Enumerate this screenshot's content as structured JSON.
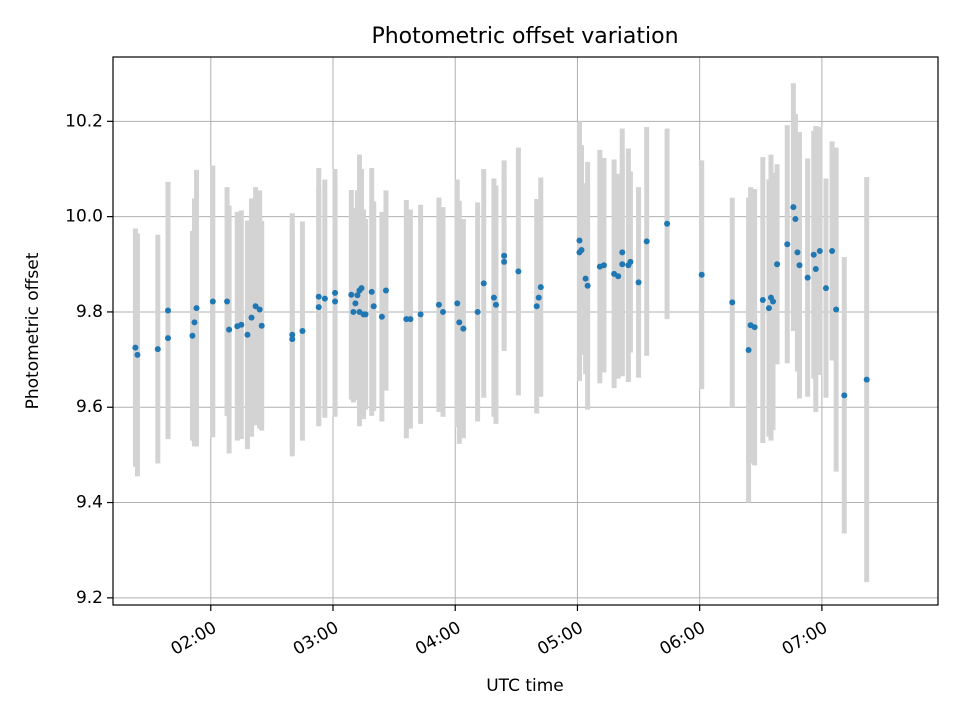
{
  "chart_data": {
    "type": "scatter",
    "title": "Photometric offset variation",
    "xlabel": "UTC time",
    "ylabel": "Photometric offset",
    "x_unit": "UTC time of day (HH:MM)",
    "xlim": [
      "01:12",
      "07:57"
    ],
    "ylim": [
      9.185,
      10.335
    ],
    "x_ticks": [
      "02:00",
      "03:00",
      "04:00",
      "05:00",
      "06:00",
      "07:00"
    ],
    "y_ticks": [
      "9.2",
      "9.4",
      "9.6",
      "9.8",
      "10.0",
      "10.2"
    ],
    "grid": true,
    "legend": "none",
    "point_color": "#1f77b4",
    "errorbar_color": "#d3d3d3",
    "series": [
      {
        "points": [
          {
            "x": "01:23",
            "y": 9.725,
            "yerr": 0.25
          },
          {
            "x": "01:24",
            "y": 9.71,
            "yerr": 0.255
          },
          {
            "x": "01:34",
            "y": 9.722,
            "yerr": 0.24
          },
          {
            "x": "01:39",
            "y": 9.745,
            "yerr": 0.2
          },
          {
            "x": "01:39",
            "y": 9.803,
            "yerr": 0.27
          },
          {
            "x": "01:51",
            "y": 9.75,
            "yerr": 0.22
          },
          {
            "x": "01:52",
            "y": 9.778,
            "yerr": 0.26
          },
          {
            "x": "01:53",
            "y": 9.808,
            "yerr": 0.29
          },
          {
            "x": "02:01",
            "y": 9.822,
            "yerr": 0.285
          },
          {
            "x": "02:08",
            "y": 9.822,
            "yerr": 0.24
          },
          {
            "x": "02:09",
            "y": 9.763,
            "yerr": 0.26
          },
          {
            "x": "02:13",
            "y": 9.77,
            "yerr": 0.24
          },
          {
            "x": "02:15",
            "y": 9.773,
            "yerr": 0.24
          },
          {
            "x": "02:18",
            "y": 9.752,
            "yerr": 0.24
          },
          {
            "x": "02:20",
            "y": 9.788,
            "yerr": 0.25
          },
          {
            "x": "02:22",
            "y": 9.812,
            "yerr": 0.25
          },
          {
            "x": "02:24",
            "y": 9.805,
            "yerr": 0.25
          },
          {
            "x": "02:25",
            "y": 9.771,
            "yerr": 0.22
          },
          {
            "x": "02:40",
            "y": 9.752,
            "yerr": 0.255
          },
          {
            "x": "02:40",
            "y": 9.743,
            "yerr": 0.24
          },
          {
            "x": "02:45",
            "y": 9.76,
            "yerr": 0.23
          },
          {
            "x": "02:53",
            "y": 9.81,
            "yerr": 0.25
          },
          {
            "x": "02:53",
            "y": 9.832,
            "yerr": 0.27
          },
          {
            "x": "02:56",
            "y": 9.828,
            "yerr": 0.25
          },
          {
            "x": "03:01",
            "y": 9.822,
            "yerr": 0.24
          },
          {
            "x": "03:01",
            "y": 9.84,
            "yerr": 0.26
          },
          {
            "x": "03:09",
            "y": 9.836,
            "yerr": 0.22
          },
          {
            "x": "03:10",
            "y": 9.8,
            "yerr": 0.19
          },
          {
            "x": "03:11",
            "y": 9.818,
            "yerr": 0.2
          },
          {
            "x": "03:12",
            "y": 9.835,
            "yerr": 0.22
          },
          {
            "x": "03:13",
            "y": 9.845,
            "yerr": 0.285
          },
          {
            "x": "03:13",
            "y": 9.8,
            "yerr": 0.22
          },
          {
            "x": "03:14",
            "y": 9.85,
            "yerr": 0.25
          },
          {
            "x": "03:15",
            "y": 9.795,
            "yerr": 0.22
          },
          {
            "x": "03:16",
            "y": 9.795,
            "yerr": 0.2
          },
          {
            "x": "03:19",
            "y": 9.842,
            "yerr": 0.26
          },
          {
            "x": "03:20",
            "y": 9.812,
            "yerr": 0.22
          },
          {
            "x": "03:24",
            "y": 9.79,
            "yerr": 0.22
          },
          {
            "x": "03:26",
            "y": 9.845,
            "yerr": 0.21
          },
          {
            "x": "03:36",
            "y": 9.785,
            "yerr": 0.25
          },
          {
            "x": "03:38",
            "y": 9.785,
            "yerr": 0.23
          },
          {
            "x": "03:43",
            "y": 9.795,
            "yerr": 0.23
          },
          {
            "x": "03:52",
            "y": 9.815,
            "yerr": 0.225
          },
          {
            "x": "03:54",
            "y": 9.8,
            "yerr": 0.22
          },
          {
            "x": "04:01",
            "y": 9.818,
            "yerr": 0.26
          },
          {
            "x": "04:02",
            "y": 9.778,
            "yerr": 0.255
          },
          {
            "x": "04:04",
            "y": 9.765,
            "yerr": 0.23
          },
          {
            "x": "04:11",
            "y": 9.8,
            "yerr": 0.23
          },
          {
            "x": "04:14",
            "y": 9.86,
            "yerr": 0.24
          },
          {
            "x": "04:19",
            "y": 9.83,
            "yerr": 0.25
          },
          {
            "x": "04:20",
            "y": 9.815,
            "yerr": 0.25
          },
          {
            "x": "04:24",
            "y": 9.905,
            "yerr": 0.18
          },
          {
            "x": "04:24",
            "y": 9.918,
            "yerr": 0.2
          },
          {
            "x": "04:31",
            "y": 9.885,
            "yerr": 0.26
          },
          {
            "x": "04:40",
            "y": 9.812,
            "yerr": 0.225
          },
          {
            "x": "04:41",
            "y": 9.83,
            "yerr": 0.2
          },
          {
            "x": "04:42",
            "y": 9.852,
            "yerr": 0.23
          },
          {
            "x": "05:01",
            "y": 9.95,
            "yerr": 0.25
          },
          {
            "x": "05:01",
            "y": 9.925,
            "yerr": 0.27
          },
          {
            "x": "05:02",
            "y": 9.93,
            "yerr": 0.22
          },
          {
            "x": "05:04",
            "y": 9.87,
            "yerr": 0.2
          },
          {
            "x": "05:05",
            "y": 9.855,
            "yerr": 0.26
          },
          {
            "x": "05:11",
            "y": 9.895,
            "yerr": 0.245
          },
          {
            "x": "05:13",
            "y": 9.898,
            "yerr": 0.225
          },
          {
            "x": "05:18",
            "y": 9.88,
            "yerr": 0.24
          },
          {
            "x": "05:20",
            "y": 9.875,
            "yerr": 0.215
          },
          {
            "x": "05:22",
            "y": 9.925,
            "yerr": 0.26
          },
          {
            "x": "05:22",
            "y": 9.9,
            "yerr": 0.23
          },
          {
            "x": "05:25",
            "y": 9.898,
            "yerr": 0.245
          },
          {
            "x": "05:26",
            "y": 9.905,
            "yerr": 0.19
          },
          {
            "x": "05:30",
            "y": 9.862,
            "yerr": 0.2
          },
          {
            "x": "05:34",
            "y": 9.948,
            "yerr": 0.24
          },
          {
            "x": "05:44",
            "y": 9.985,
            "yerr": 0.2
          },
          {
            "x": "06:01",
            "y": 9.878,
            "yerr": 0.24
          },
          {
            "x": "06:16",
            "y": 9.82,
            "yerr": 0.22
          },
          {
            "x": "06:24",
            "y": 9.72,
            "yerr": 0.32
          },
          {
            "x": "06:25",
            "y": 9.772,
            "yerr": 0.29
          },
          {
            "x": "06:27",
            "y": 9.768,
            "yerr": 0.29
          },
          {
            "x": "06:31",
            "y": 9.825,
            "yerr": 0.3
          },
          {
            "x": "06:34",
            "y": 9.808,
            "yerr": 0.27
          },
          {
            "x": "06:35",
            "y": 9.83,
            "yerr": 0.3
          },
          {
            "x": "06:36",
            "y": 9.822,
            "yerr": 0.27
          },
          {
            "x": "06:38",
            "y": 9.9,
            "yerr": 0.21
          },
          {
            "x": "06:43",
            "y": 9.942,
            "yerr": 0.25
          },
          {
            "x": "06:46",
            "y": 10.02,
            "yerr": 0.26
          },
          {
            "x": "06:47",
            "y": 9.995,
            "yerr": 0.22
          },
          {
            "x": "06:48",
            "y": 9.925,
            "yerr": 0.25
          },
          {
            "x": "06:49",
            "y": 9.898,
            "yerr": 0.28
          },
          {
            "x": "06:53",
            "y": 9.872,
            "yerr": 0.25
          },
          {
            "x": "06:56",
            "y": 9.92,
            "yerr": 0.26
          },
          {
            "x": "06:57",
            "y": 9.89,
            "yerr": 0.3
          },
          {
            "x": "06:59",
            "y": 9.928,
            "yerr": 0.26
          },
          {
            "x": "07:02",
            "y": 9.85,
            "yerr": 0.23
          },
          {
            "x": "07:05",
            "y": 9.928,
            "yerr": 0.23
          },
          {
            "x": "07:07",
            "y": 9.805,
            "yerr": 0.34
          },
          {
            "x": "07:11",
            "y": 9.625,
            "yerr": 0.29
          },
          {
            "x": "07:22",
            "y": 9.658,
            "yerr": 0.425
          }
        ]
      }
    ]
  }
}
